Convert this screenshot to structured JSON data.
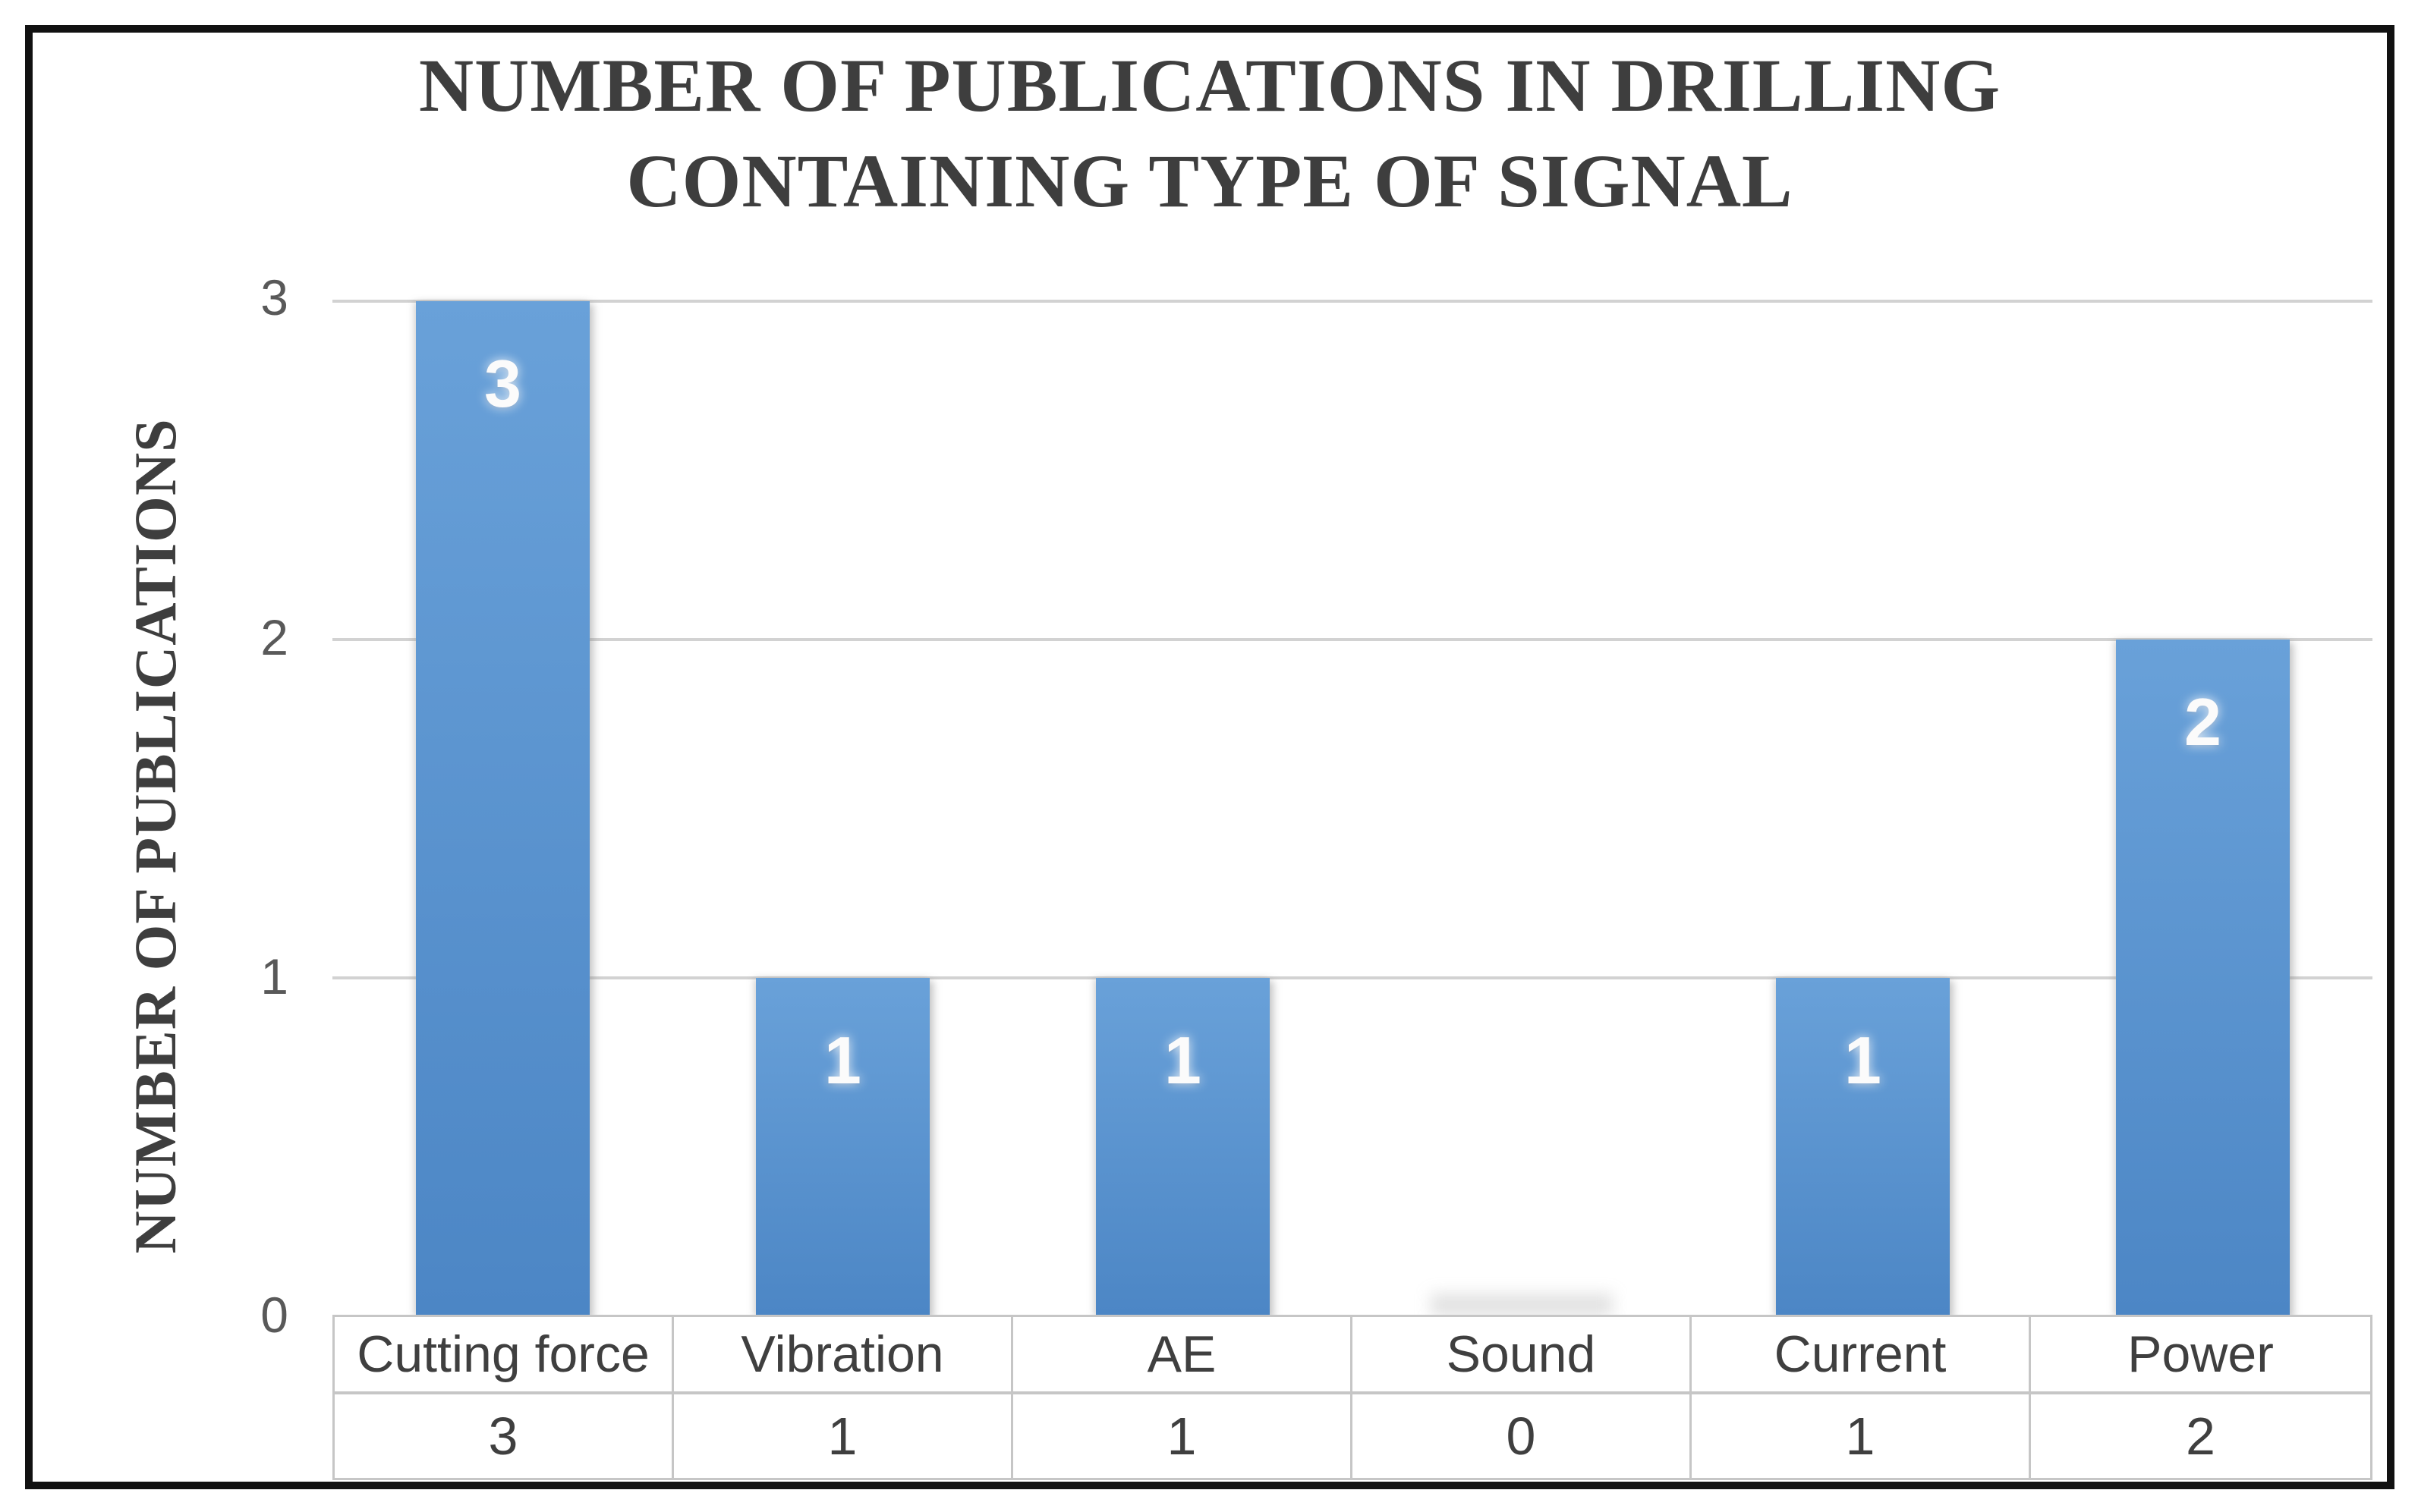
{
  "chart_data": {
    "type": "bar",
    "title": "NUMBER OF PUBLICATIONS IN DRILLING CONTAINING TYPE OF SIGNAL",
    "title_line1": "NUMBER OF PUBLICATIONS IN DRILLING",
    "title_line2": "CONTAINING TYPE OF SIGNAL",
    "xlabel": "",
    "ylabel": "NUMBER OF PUBLICATIONS",
    "categories": [
      "Cutting force",
      "Vibration",
      "AE",
      "Sound",
      "Current",
      "Power"
    ],
    "values": [
      3,
      1,
      1,
      0,
      1,
      2
    ],
    "yticks": [
      "3",
      "2",
      "1",
      "0"
    ],
    "ylim": [
      0,
      3
    ],
    "grid": true,
    "legend_position": "none",
    "data_table_shown": true
  },
  "colors": {
    "background": "#FFFFFF",
    "frame_border": "#111111",
    "bar_top": "#69A1D9",
    "bar_bottom": "#4C86C5",
    "gridline": "#D2D2D2",
    "axis_line": "#C2C2C2",
    "title_text": "#3E3E3E",
    "tick_text": "#595959",
    "table_text": "#3F3F3F",
    "table_border": "#C6C6C6",
    "data_label_text": "#FBFBFB"
  }
}
